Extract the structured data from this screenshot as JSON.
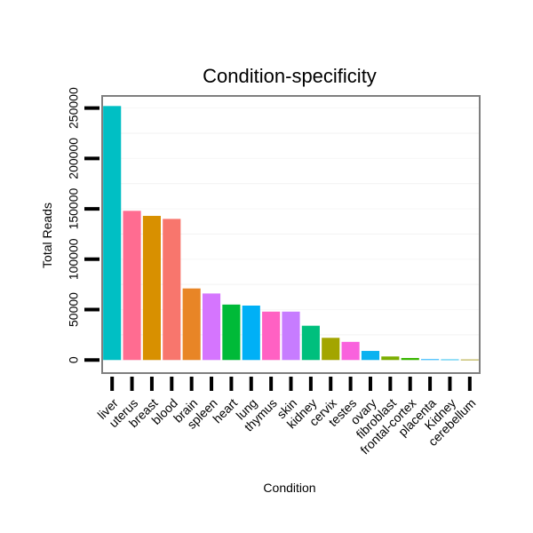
{
  "chart_data": {
    "type": "bar",
    "title": "Condition-specificity",
    "xlabel": "Condition",
    "ylabel": "Total Reads",
    "ylim": [
      -13000,
      262000
    ],
    "yticks": [
      0,
      50000,
      100000,
      150000,
      200000,
      250000
    ],
    "ytick_labels": [
      "0",
      "50000",
      "100000",
      "150000",
      "200000",
      "250000"
    ],
    "grid": true,
    "legend": "none",
    "categories": [
      "liver",
      "uterus",
      "breast",
      "blood",
      "brain",
      "spleen",
      "heart",
      "lung",
      "thymus",
      "skin",
      "kidney",
      "cervix",
      "testes",
      "ovary",
      "fibroblast",
      "frontal-cortex",
      "placenta",
      "Kidney",
      "cerebellum"
    ],
    "values": [
      252000,
      148000,
      143000,
      140000,
      71000,
      66000,
      55000,
      54000,
      48000,
      48000,
      34000,
      22000,
      18000,
      9000,
      3500,
      2000,
      800,
      600,
      500
    ],
    "colors": [
      "#00BFC4",
      "#FF6C91",
      "#D89000",
      "#F8766D",
      "#E88526",
      "#D575FE",
      "#00BA38",
      "#00B0F6",
      "#FF61C3",
      "#C77CFF",
      "#00BF7D",
      "#A3A500",
      "#F962DD",
      "#0BB2F0",
      "#7CAE00",
      "#39B600",
      "#00A9FF",
      "#00B4EF",
      "#9E9000"
    ]
  }
}
